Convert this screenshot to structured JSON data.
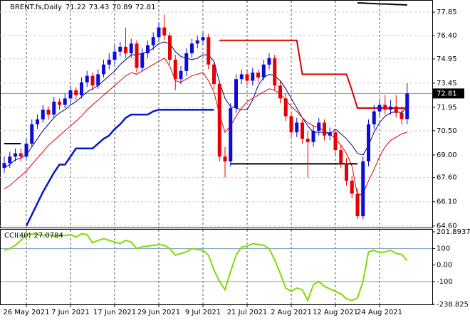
{
  "chart_data": {
    "type": "candlestick",
    "title": "BRENT.fs,Daily",
    "categories": [
      null,
      null,
      null,
      null,
      "26 May 2021",
      null,
      null,
      null,
      null,
      null,
      null,
      null,
      "7 Jun 2021",
      null,
      null,
      null,
      null,
      null,
      null,
      null,
      "17 Jun 2021",
      null,
      null,
      null,
      null,
      null,
      null,
      null,
      "29 Jun 2021",
      null,
      null,
      null,
      null,
      null,
      null,
      null,
      "9 Jul 2021",
      null,
      null,
      null,
      null,
      null,
      null,
      null,
      "21 Jul 2021",
      null,
      null,
      null,
      null,
      null,
      null,
      null,
      "2 Aug 2021",
      null,
      null,
      null,
      null,
      null,
      null,
      null,
      "12 Aug 2021",
      null,
      null,
      null,
      null,
      null,
      null,
      null,
      "24 Aug 2021",
      null,
      null,
      null,
      null,
      null
    ],
    "ohlc": [
      [
        68.2,
        68.9,
        67.9,
        68.5
      ],
      [
        68.5,
        69.2,
        68.2,
        68.9
      ],
      [
        68.9,
        69.4,
        68.6,
        69.1
      ],
      [
        69.1,
        69.4,
        68.6,
        68.9
      ],
      [
        68.9,
        70.0,
        68.7,
        69.7
      ],
      [
        69.7,
        71.2,
        69.5,
        70.9
      ],
      [
        70.9,
        71.5,
        70.6,
        71.2
      ],
      [
        71.2,
        72.1,
        71.0,
        71.8
      ],
      [
        71.8,
        72.0,
        71.2,
        71.5
      ],
      [
        71.5,
        72.6,
        71.3,
        72.3
      ],
      [
        72.3,
        72.5,
        71.8,
        72.1
      ],
      [
        72.1,
        72.8,
        71.9,
        72.5
      ],
      [
        72.5,
        73.3,
        72.2,
        73.0
      ],
      [
        73.0,
        73.2,
        72.4,
        72.7
      ],
      [
        72.7,
        73.8,
        72.5,
        73.5
      ],
      [
        73.5,
        74.2,
        73.2,
        73.9
      ],
      [
        73.9,
        74.1,
        73.0,
        73.3
      ],
      [
        73.3,
        74.3,
        73.1,
        74.0
      ],
      [
        74.0,
        74.9,
        73.8,
        74.6
      ],
      [
        74.6,
        75.3,
        74.3,
        74.9
      ],
      [
        74.9,
        75.8,
        74.6,
        75.4
      ],
      [
        75.4,
        76.0,
        75.1,
        75.7
      ],
      [
        75.7,
        76.9,
        75.0,
        75.3
      ],
      [
        75.3,
        76.2,
        75.0,
        75.9
      ],
      [
        75.9,
        76.1,
        74.1,
        74.4
      ],
      [
        74.4,
        75.6,
        74.2,
        75.3
      ],
      [
        75.3,
        76.1,
        75.0,
        75.8
      ],
      [
        75.8,
        76.6,
        75.5,
        76.3
      ],
      [
        76.3,
        77.2,
        76.0,
        76.9
      ],
      [
        76.9,
        77.7,
        76.1,
        76.4
      ],
      [
        76.4,
        76.6,
        74.6,
        74.9
      ],
      [
        74.9,
        75.2,
        73.0,
        73.7
      ],
      [
        73.7,
        74.5,
        73.4,
        74.2
      ],
      [
        74.2,
        75.6,
        73.9,
        75.3
      ],
      [
        75.3,
        76.2,
        75.0,
        75.9
      ],
      [
        75.9,
        76.4,
        75.6,
        76.1
      ],
      [
        76.1,
        76.6,
        75.8,
        76.3
      ],
      [
        76.3,
        76.5,
        74.3,
        74.6
      ],
      [
        74.6,
        74.8,
        73.1,
        73.4
      ],
      [
        73.4,
        73.6,
        68.6,
        68.9
      ],
      [
        68.9,
        69.5,
        67.6,
        68.6
      ],
      [
        68.6,
        72.2,
        68.3,
        71.9
      ],
      [
        71.9,
        74.0,
        71.6,
        73.7
      ],
      [
        73.7,
        74.3,
        73.4,
        74.0
      ],
      [
        74.0,
        74.3,
        73.3,
        73.6
      ],
      [
        73.6,
        74.4,
        73.3,
        74.1
      ],
      [
        74.1,
        74.3,
        73.5,
        73.8
      ],
      [
        73.8,
        74.9,
        73.6,
        74.6
      ],
      [
        74.6,
        75.3,
        74.3,
        75.0
      ],
      [
        75.0,
        75.2,
        73.0,
        73.3
      ],
      [
        73.3,
        73.6,
        72.2,
        72.5
      ],
      [
        72.5,
        72.8,
        71.1,
        71.4
      ],
      [
        71.4,
        71.7,
        70.1,
        70.4
      ],
      [
        70.4,
        71.3,
        70.1,
        71.0
      ],
      [
        71.0,
        71.2,
        69.7,
        70.0
      ],
      [
        70.0,
        70.5,
        67.6,
        69.8
      ],
      [
        69.8,
        70.8,
        69.5,
        70.5
      ],
      [
        70.5,
        71.3,
        70.2,
        71.0
      ],
      [
        71.0,
        71.2,
        69.9,
        70.2
      ],
      [
        70.2,
        70.7,
        69.9,
        70.4
      ],
      [
        70.4,
        70.6,
        69.0,
        69.3
      ],
      [
        69.3,
        69.6,
        68.2,
        68.5
      ],
      [
        68.5,
        68.8,
        67.1,
        67.4
      ],
      [
        67.4,
        67.7,
        66.3,
        66.6
      ],
      [
        66.6,
        66.9,
        65.0,
        65.2
      ],
      [
        65.2,
        68.9,
        65.0,
        68.6
      ],
      [
        68.6,
        71.2,
        68.3,
        70.9
      ],
      [
        70.9,
        72.1,
        70.6,
        71.7
      ],
      [
        71.7,
        72.5,
        71.4,
        72.1
      ],
      [
        72.1,
        72.7,
        71.5,
        71.8
      ],
      [
        71.8,
        72.4,
        71.5,
        72.0
      ],
      [
        72.0,
        72.7,
        71.3,
        71.6
      ],
      [
        71.6,
        72.0,
        70.9,
        71.22
      ],
      [
        71.22,
        73.43,
        70.89,
        72.81
      ]
    ],
    "up_color": "#0c0cd8",
    "down_color": "#e80000",
    "ylim": [
      64.5,
      78.6
    ],
    "yticks": [
      77.85,
      {
        "value": 76.4,
        "label": "76.40"
      },
      74.95,
      73.45,
      71.95,
      {
        "value": 70.5,
        "label": "70.50"
      },
      {
        "value": 69.0,
        "label": "69.00"
      },
      {
        "value": 67.6,
        "label": "67.60"
      },
      {
        "value": 66.1,
        "label": "66.10"
      },
      {
        "value": 64.6,
        "label": "64.60"
      }
    ],
    "grid": true,
    "series": [
      {
        "color": "#000080",
        "width": 1,
        "values": [
          68.2,
          68.4,
          68.7,
          68.8,
          69.0,
          69.5,
          70.0,
          70.5,
          70.9,
          71.3,
          71.6,
          71.8,
          72.1,
          72.3,
          72.6,
          72.9,
          73.1,
          73.3,
          73.6,
          73.9,
          74.2,
          74.6,
          74.9,
          75.2,
          75.2,
          75.3,
          75.4,
          75.6,
          75.9,
          76.0,
          75.9,
          75.4,
          75.1,
          75.0,
          74.9,
          75.0,
          75.2,
          75.2,
          74.8,
          73.5,
          72.5,
          72.0,
          71.9,
          71.8,
          71.8,
          72.4,
          73.3,
          73.8,
          74.0,
          73.9,
          73.6,
          73.1,
          72.5,
          71.9,
          71.3,
          70.8,
          70.4,
          70.4,
          70.4,
          70.3,
          70.6,
          70.3,
          70.0,
          69.6,
          69.1,
          69.0,
          69.6,
          70.4,
          71.0,
          71.4,
          71.6,
          71.7,
          71.6,
          72.0
        ]
      },
      {
        "color": "#e00000",
        "width": 1,
        "values": [
          66.9,
          67.1,
          67.4,
          67.7,
          68.0,
          68.4,
          68.8,
          69.2,
          69.6,
          69.9,
          70.2,
          70.5,
          70.8,
          71.1,
          71.4,
          71.8,
          72.1,
          72.4,
          72.7,
          73.0,
          73.3,
          73.6,
          73.9,
          74.1,
          74.0,
          74.2,
          74.4,
          74.6,
          74.8,
          75.0,
          74.5,
          73.6,
          73.5,
          73.7,
          73.9,
          74.0,
          74.1,
          73.6,
          72.9,
          71.5,
          70.4,
          70.8,
          71.4,
          71.9,
          72.3,
          72.5,
          72.7,
          72.9,
          73.1,
          73.0,
          72.8,
          72.4,
          72.0,
          71.7,
          71.3,
          71.0,
          70.8,
          70.7,
          70.5,
          70.3,
          70.0,
          69.6,
          69.1,
          68.3,
          66.5,
          66.6,
          67.4,
          68.1,
          68.9,
          69.5,
          69.9,
          70.1,
          70.3,
          70.4
        ]
      },
      {
        "color": "#0018c8",
        "width": 2.5,
        "values": [
          null,
          null,
          null,
          null,
          64.6,
          65.3,
          66.0,
          66.7,
          67.3,
          67.9,
          68.4,
          68.4,
          68.9,
          69.4,
          69.4,
          69.4,
          69.4,
          69.7,
          70.0,
          70.2,
          70.6,
          70.9,
          71.3,
          71.5,
          71.5,
          71.5,
          71.5,
          71.7,
          71.8,
          71.8,
          71.8,
          71.8,
          71.8,
          71.8,
          71.8,
          71.8,
          71.8,
          71.8,
          71.8,
          null,
          null,
          null,
          null,
          null,
          null,
          null,
          null,
          null,
          null,
          null,
          null,
          null,
          null,
          null,
          null,
          null,
          null,
          null,
          null,
          null,
          null,
          null,
          null,
          null,
          null,
          null,
          null,
          null,
          null,
          null,
          null,
          null,
          null,
          null
        ]
      },
      {
        "color": "#e00000",
        "width": 2,
        "values": [
          null,
          null,
          null,
          null,
          null,
          null,
          null,
          null,
          null,
          null,
          null,
          null,
          null,
          null,
          null,
          null,
          null,
          null,
          null,
          null,
          null,
          null,
          null,
          null,
          null,
          null,
          null,
          null,
          null,
          null,
          null,
          null,
          null,
          null,
          null,
          null,
          null,
          null,
          null,
          76.1,
          76.1,
          76.1,
          76.1,
          76.1,
          76.1,
          76.1,
          76.1,
          76.1,
          76.1,
          76.1,
          76.1,
          76.1,
          76.1,
          76.1,
          74.0,
          74.0,
          74.0,
          74.0,
          74.0,
          74.0,
          74.0,
          74.0,
          74.0,
          73.0,
          71.9,
          71.9,
          71.9,
          71.9,
          71.9,
          71.9,
          71.9,
          71.9,
          71.9,
          71.9
        ]
      },
      {
        "color": "#000000",
        "width": 2,
        "values": [
          69.7,
          69.7,
          69.7,
          69.7,
          null,
          null,
          null,
          null,
          null,
          null,
          null,
          null,
          null,
          null,
          null,
          null,
          null,
          null,
          null,
          null,
          null,
          null,
          null,
          null,
          null,
          null,
          null,
          null,
          null,
          null,
          null,
          null,
          null,
          null,
          null,
          null,
          null,
          null,
          null,
          null,
          null,
          68.45,
          68.45,
          68.45,
          68.45,
          68.45,
          68.45,
          68.45,
          68.45,
          68.45,
          68.45,
          68.45,
          68.45,
          68.45,
          68.45,
          68.45,
          68.45,
          68.45,
          68.45,
          68.45,
          68.45,
          68.45,
          68.45,
          68.45,
          68.45,
          null,
          null,
          null,
          null,
          null,
          null,
          null,
          null,
          null
        ]
      },
      {
        "color": "#000000",
        "width": 2,
        "values": [
          null,
          null,
          null,
          null,
          null,
          null,
          null,
          null,
          null,
          null,
          null,
          null,
          null,
          null,
          null,
          null,
          null,
          null,
          null,
          null,
          null,
          null,
          null,
          null,
          null,
          null,
          null,
          null,
          null,
          null,
          null,
          null,
          null,
          null,
          null,
          null,
          null,
          null,
          null,
          null,
          null,
          null,
          null,
          null,
          null,
          null,
          null,
          null,
          null,
          null,
          null,
          null,
          null,
          null,
          null,
          null,
          null,
          null,
          null,
          null,
          null,
          null,
          null,
          null,
          78.42,
          78.41,
          78.39,
          78.38,
          78.36,
          78.35,
          78.34,
          78.32,
          78.31,
          78.29
        ]
      }
    ],
    "indicator": {
      "title": "CCI(40)",
      "color": "#7fdc00",
      "values": [
        90,
        100,
        120,
        150,
        185,
        190,
        185,
        180,
        185,
        175,
        180,
        180,
        185,
        170,
        190,
        185,
        135,
        150,
        160,
        150,
        140,
        130,
        150,
        140,
        100,
        110,
        115,
        120,
        125,
        120,
        100,
        60,
        70,
        80,
        100,
        95,
        90,
        60,
        -30,
        -100,
        -150,
        -40,
        60,
        110,
        115,
        130,
        125,
        120,
        100,
        30,
        -50,
        -140,
        -160,
        -140,
        -150,
        -215,
        -120,
        -100,
        -130,
        -145,
        -160,
        -175,
        -205,
        -215,
        -200,
        -100,
        80,
        90,
        75,
        80,
        90,
        70,
        65,
        27.0784
      ],
      "ylim": [
        -238.825,
        201.8937
      ],
      "yticks": [
        201.8937,
        100,
        {
          "value": 0,
          "label": "0.00"
        },
        -100,
        -238.825
      ],
      "levels": [
        100,
        -100
      ]
    }
  }
}
